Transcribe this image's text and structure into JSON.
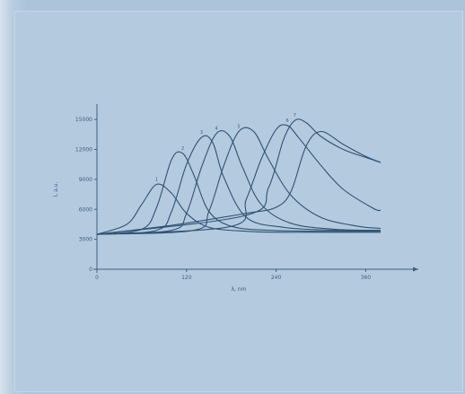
{
  "colors": {
    "background": "#b4cadf",
    "ink": "#3e5f7f",
    "curve": "#2f5272"
  },
  "chart_data": {
    "type": "line",
    "title": "",
    "xlabel": "λ, nm",
    "ylabel": "I, a.u.",
    "xlim": [
      0,
      380
    ],
    "ylim": [
      0,
      16000
    ],
    "x_ticks": [
      {
        "value": 0,
        "label": "0"
      },
      {
        "value": 120,
        "label": "120"
      },
      {
        "value": 240,
        "label": "240"
      },
      {
        "value": 360,
        "label": "360"
      }
    ],
    "y_ticks": [
      {
        "value": 0,
        "label": "0"
      },
      {
        "value": 3000,
        "label": "3000"
      },
      {
        "value": 6000,
        "label": "6000"
      },
      {
        "value": 9000,
        "label": "9000"
      },
      {
        "value": 12000,
        "label": "12000"
      },
      {
        "value": 15000,
        "label": "15000"
      }
    ],
    "grid": false,
    "legend": "none",
    "series": [
      {
        "label": "1",
        "x": [
          0,
          40,
          60,
          80,
          100,
          120,
          150,
          200,
          250,
          300,
          380
        ],
        "y": [
          3500,
          4500,
          6500,
          8500,
          7600,
          5600,
          4200,
          3800,
          3700,
          3700,
          3700
        ]
      },
      {
        "label": "2",
        "x": [
          0,
          60,
          80,
          100,
          115,
          130,
          150,
          180,
          230,
          300,
          380
        ],
        "y": [
          3500,
          4000,
          6200,
          11000,
          11600,
          9400,
          5800,
          4300,
          3900,
          3800,
          3800
        ]
      },
      {
        "label": "3",
        "x": [
          0,
          80,
          100,
          120,
          140,
          155,
          170,
          200,
          250,
          320,
          380
        ],
        "y": [
          3500,
          3900,
          5800,
          10500,
          13200,
          12700,
          9200,
          5200,
          4200,
          3900,
          3900
        ]
      },
      {
        "label": "4",
        "x": [
          0,
          100,
          120,
          140,
          160,
          178,
          195,
          220,
          260,
          320,
          380
        ],
        "y": [
          3500,
          3900,
          5600,
          10200,
          13600,
          13300,
          10200,
          6500,
          4600,
          4000,
          3900
        ]
      },
      {
        "label": "5",
        "x": [
          0,
          130,
          150,
          170,
          190,
          210,
          230,
          260,
          300,
          350,
          380
        ],
        "y": [
          3500,
          3900,
          5800,
          10400,
          13800,
          13800,
          11000,
          7400,
          5200,
          4300,
          4100
        ]
      },
      {
        "label": "6",
        "x": [
          0,
          180,
          200,
          220,
          240,
          255,
          270,
          300,
          330,
          370,
          380
        ],
        "y": [
          3500,
          4300,
          7000,
          11000,
          14000,
          14400,
          13200,
          10400,
          8000,
          6100,
          5900
        ]
      },
      {
        "label": "7",
        "x": [
          0,
          200,
          230,
          250,
          265,
          280,
          300,
          330,
          360,
          380
        ],
        "y": [
          3500,
          5400,
          8200,
          13000,
          14900,
          14700,
          13300,
          12000,
          11200,
          10700
        ]
      },
      {
        "label": "",
        "x": [
          0,
          100,
          200,
          240,
          260,
          280,
          300,
          330,
          360,
          380
        ],
        "y": [
          3500,
          4400,
          5600,
          6200,
          7800,
          12300,
          13800,
          12500,
          11300,
          10700
        ]
      }
    ]
  }
}
